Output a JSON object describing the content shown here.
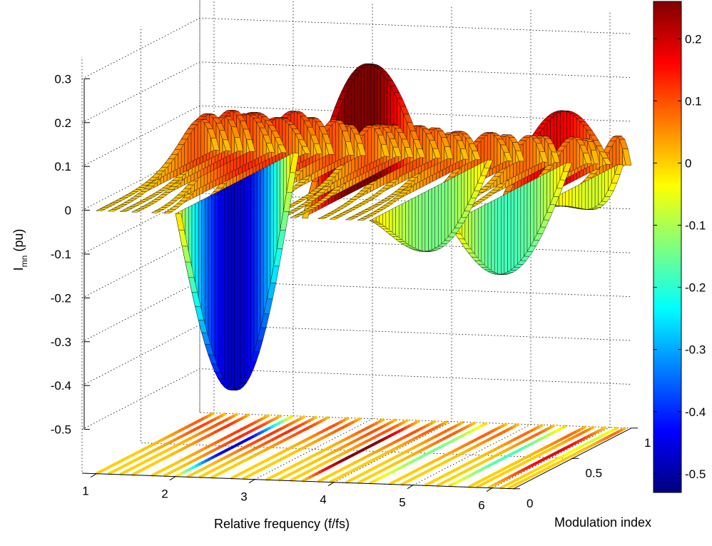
{
  "chart_data": {
    "type": "surface",
    "xlabel": "Relative frequency (f/fs)",
    "ylabel": "Modulation index",
    "zlabel_main": "I",
    "zlabel_sub": "mn",
    "zlabel_unit": " (pu)",
    "x_ticks": [
      "1",
      "2",
      "3",
      "4",
      "5",
      "6"
    ],
    "x_tick_values": [
      1,
      2,
      3,
      4,
      5,
      6
    ],
    "y_ticks": [
      "0",
      "0.5",
      "1"
    ],
    "y_tick_values": [
      0,
      0.5,
      1
    ],
    "z_ticks": [
      "0.3",
      "0.2",
      "0.1",
      "0",
      "-0.1",
      "-0.2",
      "-0.3",
      "-0.4",
      "-0.5"
    ],
    "z_tick_values": [
      0.3,
      0.2,
      0.1,
      0,
      -0.1,
      -0.2,
      -0.3,
      -0.4,
      -0.5
    ],
    "xlim": [
      0.82,
      6.27
    ],
    "ylim": [
      0,
      1
    ],
    "zlim": [
      -0.6,
      0.35
    ],
    "grid": true,
    "colormap": "jet",
    "colorbar": {
      "ticks": [
        "0.2",
        "0.1",
        "0",
        "-0.1",
        "-0.2",
        "-0.3",
        "-0.4",
        "-0.5"
      ],
      "tick_values": [
        0.2,
        0.1,
        0,
        -0.1,
        -0.2,
        -0.3,
        -0.4,
        -0.5
      ],
      "clim": [
        -0.53,
        0.26
      ],
      "placement": "right"
    },
    "floor_projection": true,
    "lobes": [
      {
        "f": 2.0,
        "peak": -0.47,
        "m_peak": 0.5
      },
      {
        "f": 3.6,
        "peak": 0.28,
        "m_peak": 0.5
      },
      {
        "f": 4.45,
        "peak": -0.14,
        "m_peak": 0.55
      },
      {
        "f": 5.45,
        "peak": -0.18,
        "m_peak": 0.5
      },
      {
        "f": 5.95,
        "peak": 0.18,
        "m_peak": 0.55
      },
      {
        "f": 6.1,
        "peak": -0.07,
        "m_peak": 0.8
      },
      {
        "f": 1.0,
        "peak": 0.09,
        "m_peak": 0.85
      },
      {
        "f": 1.15,
        "peak": 0.11,
        "m_peak": 0.8
      },
      {
        "f": 1.3,
        "peak": 0.1,
        "m_peak": 0.85
      },
      {
        "f": 1.45,
        "peak": 0.12,
        "m_peak": 0.8
      },
      {
        "f": 1.7,
        "peak": 0.12,
        "m_peak": 0.75
      },
      {
        "f": 1.85,
        "peak": 0.13,
        "m_peak": 0.7
      },
      {
        "f": 2.15,
        "peak": 0.12,
        "m_peak": 0.7
      },
      {
        "f": 2.3,
        "peak": 0.13,
        "m_peak": 0.75
      },
      {
        "f": 2.45,
        "peak": 0.11,
        "m_peak": 0.8
      },
      {
        "f": 2.7,
        "peak": 0.1,
        "m_peak": 0.85
      },
      {
        "f": 2.85,
        "peak": 0.09,
        "m_peak": 0.85
      },
      {
        "f": 3.15,
        "peak": 0.09,
        "m_peak": 0.85
      },
      {
        "f": 3.3,
        "peak": 0.1,
        "m_peak": 0.8
      },
      {
        "f": 3.45,
        "peak": 0.1,
        "m_peak": 0.8
      },
      {
        "f": 3.8,
        "peak": 0.1,
        "m_peak": 0.8
      },
      {
        "f": 3.95,
        "peak": 0.09,
        "m_peak": 0.85
      },
      {
        "f": 4.15,
        "peak": 0.08,
        "m_peak": 0.85
      },
      {
        "f": 4.3,
        "peak": 0.09,
        "m_peak": 0.8
      },
      {
        "f": 4.7,
        "peak": 0.09,
        "m_peak": 0.8
      },
      {
        "f": 4.85,
        "peak": 0.08,
        "m_peak": 0.85
      },
      {
        "f": 5.15,
        "peak": 0.08,
        "m_peak": 0.85
      },
      {
        "f": 5.3,
        "peak": 0.08,
        "m_peak": 0.85
      },
      {
        "f": 5.7,
        "peak": 0.08,
        "m_peak": 0.85
      },
      {
        "f": 5.8,
        "peak": 0.07,
        "m_peak": 0.9
      },
      {
        "f": 6.2,
        "peak": 0.08,
        "m_peak": 0.9
      }
    ]
  }
}
